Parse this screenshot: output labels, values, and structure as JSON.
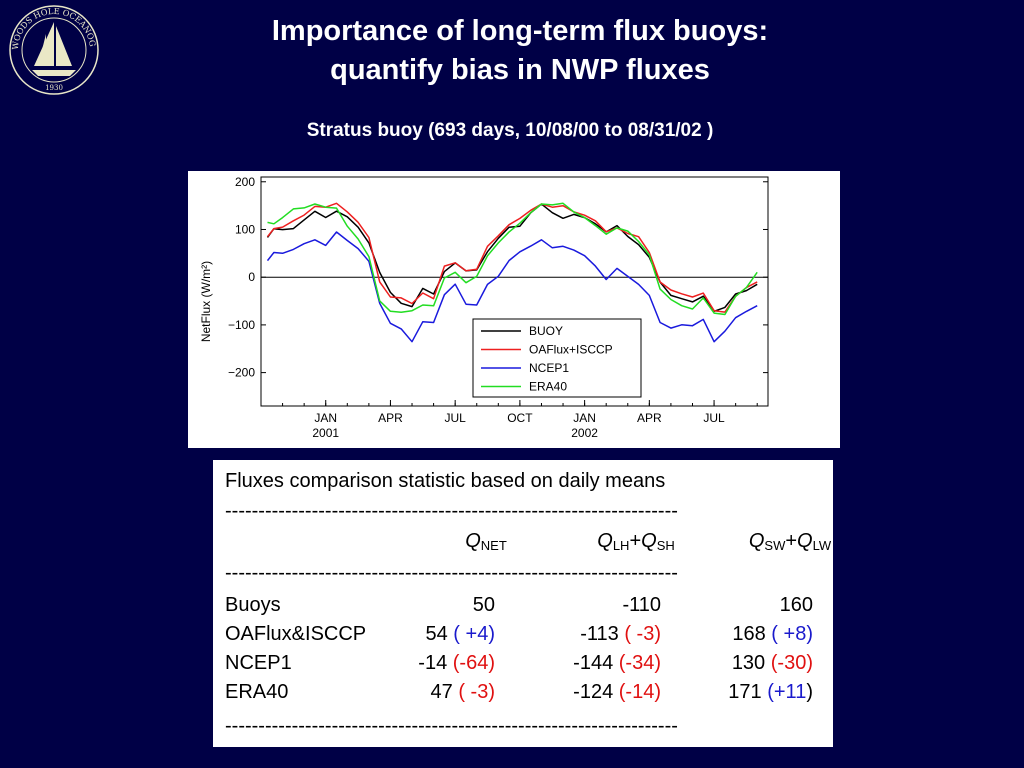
{
  "logo": {
    "ring_text": "WOODS HOLE OCEANOGRAPHIC INSTITUTION",
    "year": "1930"
  },
  "title": {
    "line1": "Importance of long-term flux buoys:",
    "line2": "quantify bias in NWP fluxes"
  },
  "subtitle": "Stratus buoy (693 days, 10/08/00 to 08/31/02 )",
  "chart_data": {
    "type": "line",
    "ylabel": "NetFlux (W/m²)",
    "ylim": [
      -270,
      210
    ],
    "y_ticks": [
      "200",
      "100",
      "0",
      "−100",
      "−200"
    ],
    "y_tick_values": [
      200,
      100,
      0,
      -100,
      -200
    ],
    "x_ticks": [
      {
        "label": "JAN",
        "sub": "2001",
        "month_index": 3
      },
      {
        "label": "APR",
        "sub": "",
        "month_index": 6
      },
      {
        "label": "JUL",
        "sub": "",
        "month_index": 9
      },
      {
        "label": "OCT",
        "sub": "",
        "month_index": 12
      },
      {
        "label": "JAN",
        "sub": "2002",
        "month_index": 15
      },
      {
        "label": "APR",
        "sub": "",
        "month_index": 18
      },
      {
        "label": "JUL",
        "sub": "",
        "month_index": 21
      }
    ],
    "x_range_months": [
      0,
      23.5
    ],
    "zero_line": true,
    "legend_position": "bottom-right",
    "series": [
      {
        "name": "BUOY",
        "color": "#000000",
        "x": [
          0.3,
          0.6,
          1,
          1.5,
          2,
          2.5,
          3,
          3.5,
          4,
          4.5,
          5,
          5.5,
          6,
          6.5,
          7,
          7.5,
          8,
          8.5,
          9,
          9.5,
          10,
          10.5,
          11,
          11.5,
          12,
          12.5,
          13,
          13.5,
          14,
          14.5,
          15,
          15.5,
          16,
          16.5,
          17,
          17.5,
          18,
          18.5,
          19,
          19.5,
          20,
          20.5,
          21,
          21.5,
          22,
          22.5,
          23
        ],
        "y": [
          85,
          100,
          95,
          105,
          120,
          135,
          130,
          140,
          125,
          100,
          75,
          10,
          -35,
          -50,
          -60,
          -25,
          -40,
          15,
          30,
          10,
          20,
          55,
          80,
          100,
          110,
          135,
          150,
          140,
          125,
          130,
          120,
          115,
          95,
          105,
          90,
          70,
          40,
          -15,
          -35,
          -45,
          -55,
          -35,
          -70,
          -65,
          -40,
          -25,
          -15
        ]
      },
      {
        "name": "OAFlux+ISCCP",
        "color": "#ee2020",
        "x": [
          0.3,
          0.6,
          1,
          1.5,
          2,
          2.5,
          3,
          3.5,
          4,
          4.5,
          5,
          5.5,
          6,
          6.5,
          7,
          7.5,
          8,
          8.5,
          9,
          9.5,
          10,
          10.5,
          11,
          11.5,
          12,
          12.5,
          13,
          13.5,
          14,
          14.5,
          15,
          15.5,
          16,
          16.5,
          17,
          17.5,
          18,
          18.5,
          19,
          19.5,
          20,
          20.5,
          21,
          21.5,
          22,
          22.5,
          23
        ],
        "y": [
          80,
          105,
          105,
          115,
          135,
          150,
          145,
          150,
          140,
          115,
          80,
          -5,
          -40,
          -45,
          -60,
          -30,
          -45,
          20,
          35,
          15,
          15,
          60,
          90,
          110,
          120,
          145,
          155,
          145,
          145,
          140,
          130,
          115,
          100,
          105,
          90,
          80,
          55,
          -10,
          -30,
          -30,
          -40,
          -35,
          -75,
          -70,
          -40,
          -25,
          -5
        ]
      },
      {
        "name": "NCEP1",
        "color": "#1a1add",
        "x": [
          0.3,
          0.6,
          1,
          1.5,
          2,
          2.5,
          3,
          3.5,
          4,
          4.5,
          5,
          5.5,
          6,
          6.5,
          7,
          7.5,
          8,
          8.5,
          9,
          9.5,
          10,
          10.5,
          11,
          11.5,
          12,
          12.5,
          13,
          13.5,
          14,
          14.5,
          15,
          15.5,
          16,
          16.5,
          17,
          17.5,
          18,
          18.5,
          19,
          19.5,
          20,
          20.5,
          21,
          21.5,
          22,
          22.5,
          23
        ],
        "y": [
          30,
          55,
          50,
          55,
          75,
          80,
          65,
          90,
          80,
          60,
          30,
          -50,
          -95,
          -110,
          -140,
          -90,
          -95,
          -40,
          -10,
          -55,
          -60,
          -20,
          5,
          35,
          50,
          70,
          80,
          60,
          60,
          60,
          45,
          20,
          0,
          20,
          0,
          -20,
          -35,
          -95,
          -110,
          -95,
          -100,
          -90,
          -140,
          -110,
          -85,
          -75,
          -55
        ]
      },
      {
        "name": "ERA40",
        "color": "#22dd22",
        "x": [
          0.3,
          0.6,
          1,
          1.5,
          2,
          2.5,
          3,
          3.5,
          4,
          4.5,
          5,
          5.5,
          6,
          6.5,
          7,
          7.5,
          8,
          8.5,
          9,
          9.5,
          10,
          10.5,
          11,
          11.5,
          12,
          12.5,
          13,
          13.5,
          14,
          14.5,
          15,
          15.5,
          16,
          16.5,
          17,
          17.5,
          18,
          18.5,
          19,
          19.5,
          20,
          20.5,
          21,
          21.5,
          22,
          22.5,
          23
        ],
        "y": [
          110,
          115,
          125,
          140,
          150,
          155,
          145,
          140,
          110,
          80,
          40,
          -45,
          -70,
          -75,
          -75,
          -55,
          -60,
          -5,
          15,
          -10,
          0,
          40,
          75,
          95,
          110,
          140,
          155,
          150,
          150,
          140,
          125,
          105,
          95,
          105,
          95,
          70,
          50,
          -25,
          -50,
          -55,
          -65,
          -45,
          -80,
          -75,
          -40,
          -25,
          15
        ]
      }
    ]
  },
  "stats": {
    "heading": "Fluxes comparison statistic based on daily means",
    "divider": "--------------------------------------------------------------------",
    "columns": [
      {
        "sym1": "Q",
        "sub1": "NET",
        "plus": "",
        "sym2": "",
        "sub2": ""
      },
      {
        "sym1": "Q",
        "sub1": "LH",
        "plus": "+",
        "sym2": "Q",
        "sub2": "SH"
      },
      {
        "sym1": "Q",
        "sub1": "SW",
        "plus": "+",
        "sym2": "Q",
        "sub2": "LW"
      }
    ],
    "rows": [
      {
        "label": "Buoys",
        "cells": [
          {
            "value": "50",
            "open": "",
            "diff": "",
            "close": "",
            "color": "blue"
          },
          {
            "value": "-110",
            "open": "",
            "diff": "",
            "close": "",
            "color": "blue"
          },
          {
            "value": "160",
            "open": "",
            "diff": "",
            "close": "",
            "color": "blue"
          }
        ]
      },
      {
        "label": "OAFlux&ISCCP",
        "cells": [
          {
            "value": "54",
            "open": "(",
            "diff": " +4",
            "close": ")",
            "color": "blue",
            "paren_color": "blue"
          },
          {
            "value": "-113",
            "open": "(",
            "diff": " -3",
            "close": ")",
            "color": "red",
            "paren_color": "red"
          },
          {
            "value": "168",
            "open": "(",
            "diff": " +8",
            "close": ")",
            "color": "blue",
            "paren_color": "blue"
          }
        ]
      },
      {
        "label": "NCEP1",
        "cells": [
          {
            "value": "-14",
            "open": "(",
            "diff": "-64",
            "close": ")",
            "color": "red",
            "paren_color": "red"
          },
          {
            "value": "-144",
            "open": "(",
            "diff": "-34",
            "close": ")",
            "color": "red",
            "paren_color": "red"
          },
          {
            "value": "130",
            "open": "(",
            "diff": "-30",
            "close": ")",
            "color": "red",
            "paren_color": "red"
          }
        ]
      },
      {
        "label": "ERA40",
        "cells": [
          {
            "value": "47",
            "open": "(",
            "diff": " -3",
            "close": ")",
            "color": "red",
            "paren_color": "red"
          },
          {
            "value": "-124",
            "open": "(",
            "diff": "-14",
            "close": ")",
            "color": "red",
            "paren_color": "red"
          },
          {
            "value": "171",
            "open": "(",
            "diff": "+11",
            "close": ")",
            "color": "blue",
            "paren_color": "black"
          }
        ]
      }
    ]
  }
}
